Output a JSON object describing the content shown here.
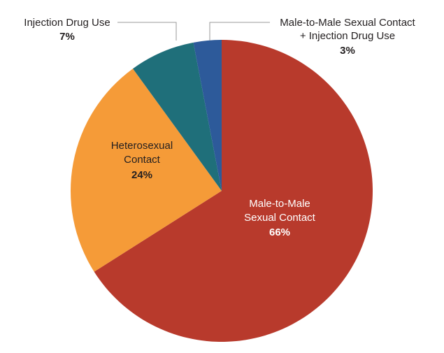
{
  "chart_data": {
    "type": "pie",
    "slices": [
      {
        "label_lines": [
          "Male-to-Male",
          "Sexual Contact"
        ],
        "percent_label": "66%",
        "value": 66,
        "color": "#b83a2c"
      },
      {
        "label_lines": [
          "Heterosexual",
          "Contact"
        ],
        "percent_label": "24%",
        "value": 24,
        "color": "#f59b38"
      },
      {
        "label_lines": [
          "Injection Drug Use"
        ],
        "percent_label": "7%",
        "value": 7,
        "color": "#1f6f7a"
      },
      {
        "label_lines": [
          "Male-to-Male Sexual Contact",
          "+ Injection Drug Use"
        ],
        "percent_label": "3%",
        "value": 3,
        "color": "#2d5a9a"
      }
    ],
    "start": "12 o'clock",
    "direction": "clockwise",
    "legend": "none"
  }
}
